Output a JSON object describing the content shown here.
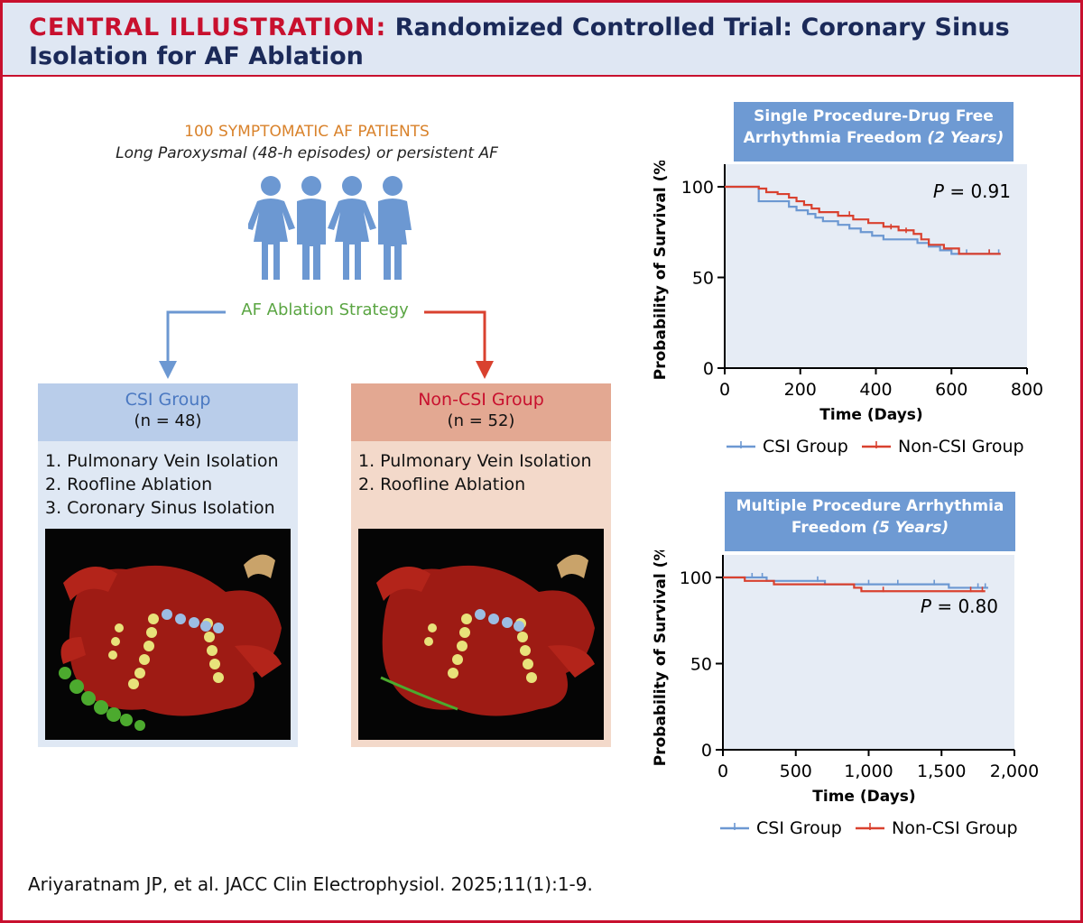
{
  "header": {
    "prefix": "CENTRAL ILLUSTRATION:",
    "title_part1": "Randomized Controlled Trial: Coronary Sinus",
    "title_part2": "Isolation for AF Ablation"
  },
  "patients": {
    "title": "100 SYMPTOMATIC AF PATIENTS",
    "subtitle": "Long Paroxysmal (48-h episodes) or persistent AF"
  },
  "strategy_label": "AF Ablation Strategy",
  "groups": {
    "csi": {
      "name": "CSI Group",
      "n": "(n = 48)",
      "steps": [
        "1. Pulmonary Vein Isolation",
        "2. Roofline Ablation",
        "3. Coronary Sinus Isolation"
      ]
    },
    "non_csi": {
      "name": "Non-CSI Group",
      "n": "(n = 52)",
      "steps": [
        "1. Pulmonary Vein Isolation",
        "2. Roofline Ablation"
      ]
    }
  },
  "chart1_title": {
    "line1": "Single Procedure-Drug Free",
    "line2_plain": "Arrhythmia Freedom ",
    "line2_italic": "(2 Years)"
  },
  "chart2_title": {
    "line1": "Multiple Procedure Arrhythmia",
    "line2_plain": "Freedom ",
    "line2_italic": "(5 Years)"
  },
  "colors": {
    "csi": "#6c98d2",
    "non_csi": "#d9412f",
    "accent_red": "#c8102e",
    "navy": "#1b2a59"
  },
  "chart_data": [
    {
      "type": "line",
      "title": "Single Procedure-Drug Free Arrhythmia Freedom (2 Years)",
      "xlabel": "Time (Days)",
      "ylabel": "Probability of Survival (%)",
      "xlim": [
        0,
        800
      ],
      "ylim": [
        0,
        100
      ],
      "xticks": [
        0,
        200,
        400,
        600,
        800
      ],
      "xtick_labels": [
        "0",
        "200",
        "400",
        "600",
        "800"
      ],
      "yticks": [
        0,
        50,
        100
      ],
      "ytick_labels": [
        "0",
        "50",
        "100"
      ],
      "p_label": "P",
      "p_value": "= 0.91",
      "legend": "bottom",
      "series": [
        {
          "name": "CSI Group",
          "key": "csi",
          "x": [
            0,
            90,
            90,
            150,
            170,
            190,
            220,
            240,
            260,
            300,
            330,
            360,
            390,
            420,
            450,
            480,
            510,
            540,
            570,
            600,
            630,
            730
          ],
          "y": [
            100,
            100,
            92,
            92,
            89,
            87,
            85,
            83,
            81,
            79,
            77,
            75,
            73,
            71,
            71,
            71,
            69,
            67,
            65,
            63,
            63,
            63
          ],
          "censor": [
            [
              640,
              63
            ],
            [
              700,
              63
            ],
            [
              725,
              63
            ]
          ]
        },
        {
          "name": "Non-CSI Group",
          "key": "non_csi",
          "x": [
            0,
            90,
            110,
            140,
            170,
            190,
            210,
            230,
            250,
            300,
            340,
            380,
            420,
            460,
            500,
            520,
            540,
            580,
            620,
            730
          ],
          "y": [
            100,
            99,
            97,
            96,
            94,
            92,
            90,
            88,
            86,
            84,
            82,
            80,
            78,
            76,
            74,
            71,
            68,
            66,
            63,
            63
          ],
          "censor": [
            [
              330,
              84
            ],
            [
              440,
              77
            ],
            [
              480,
              75
            ],
            [
              700,
              63
            ]
          ]
        }
      ]
    },
    {
      "type": "line",
      "title": "Multiple Procedure Arrhythmia Freedom (5 Years)",
      "xlabel": "Time (Days)",
      "ylabel": "Probability of Survival (%)",
      "xlim": [
        0,
        2000
      ],
      "ylim": [
        0,
        100
      ],
      "xticks": [
        0,
        500,
        1000,
        1500,
        2000
      ],
      "xtick_labels": [
        "0",
        "500",
        "1,000",
        "1,500",
        "2,000"
      ],
      "yticks": [
        0,
        50,
        100
      ],
      "ytick_labels": [
        "0",
        "50",
        "100"
      ],
      "p_label": "P",
      "p_value": "= 0.80",
      "legend": "bottom",
      "series": [
        {
          "name": "CSI Group",
          "key": "csi",
          "x": [
            0,
            250,
            300,
            600,
            700,
            1500,
            1550,
            1820
          ],
          "y": [
            100,
            100,
            98,
            98,
            96,
            96,
            94,
            94
          ],
          "censor": [
            [
              200,
              100
            ],
            [
              270,
              100
            ],
            [
              650,
              98
            ],
            [
              1000,
              96
            ],
            [
              1200,
              96
            ],
            [
              1450,
              96
            ],
            [
              1750,
              94
            ],
            [
              1800,
              94
            ]
          ]
        },
        {
          "name": "Non-CSI Group",
          "key": "non_csi",
          "x": [
            0,
            100,
            150,
            350,
            900,
            950,
            1450,
            1800
          ],
          "y": [
            100,
            100,
            98,
            96,
            94,
            92,
            92,
            92
          ],
          "censor": [
            [
              1100,
              92
            ],
            [
              1700,
              92
            ],
            [
              1780,
              92
            ]
          ]
        }
      ]
    }
  ],
  "citation": "Ariyaratnam JP, et al. JACC Clin Electrophysiol. 2025;11(1):1-9."
}
